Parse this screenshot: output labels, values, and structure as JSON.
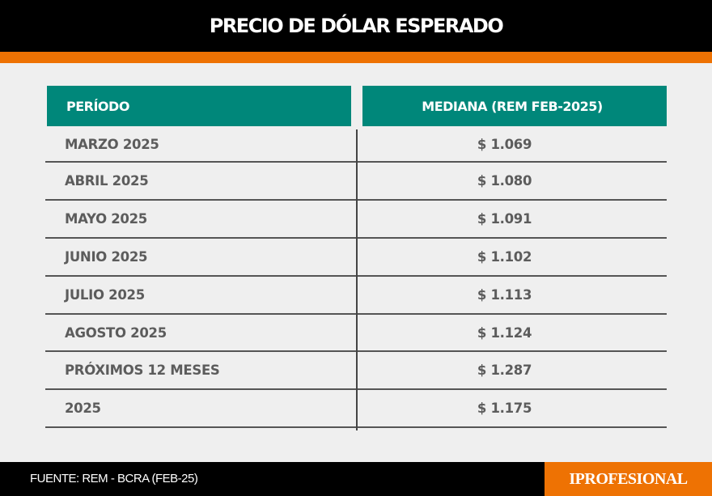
{
  "title": "PRECIO DE DÓLAR ESPERADO",
  "table": {
    "headers": [
      "PERÍODO",
      "MEDIANA (REM FEB-2025)"
    ],
    "rows": [
      [
        "MARZO 2025",
        "$ 1.069"
      ],
      [
        "ABRIL 2025",
        "$ 1.080"
      ],
      [
        "MAYO 2025",
        "$ 1.091"
      ],
      [
        "JUNIO 2025",
        "$ 1.102"
      ],
      [
        "JULIO 2025",
        "$ 1.113"
      ],
      [
        "AGOSTO 2025",
        "$ 1.124"
      ],
      [
        "PRÓXIMOS 12 MESES",
        "$ 1.287"
      ],
      [
        "2025",
        "$ 1.175"
      ]
    ]
  },
  "footer": {
    "source": "FUENTE: REM - BCRA (FEB-25)",
    "logo": "IPROFESIONAL"
  },
  "colors": {
    "header_bg": "#000000",
    "accent": "#ee7203",
    "teal": "#00877a",
    "background": "#efefef"
  }
}
